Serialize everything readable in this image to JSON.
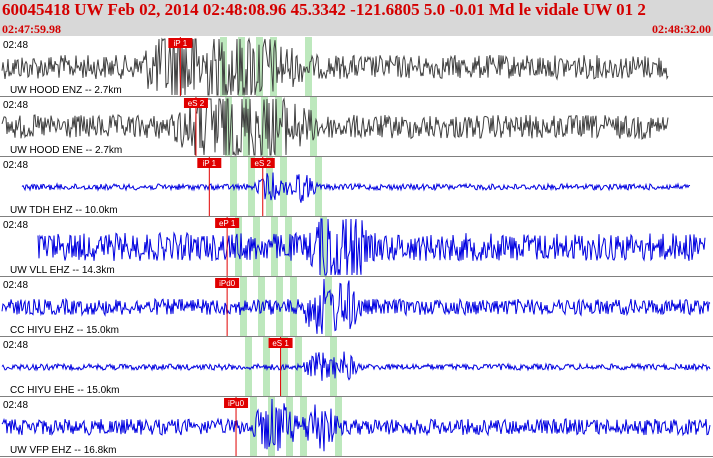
{
  "header": {
    "title": "60045418 UW Feb 02, 2014 02:48:08.96   45.3342 -121.6805  5.0 -0.01 Md le vidale UW 01   2",
    "start_time": "02:47:59.98",
    "end_time": "02:48:32.00"
  },
  "colors": {
    "accel": "#404040",
    "vel": "#0000e0",
    "pick": "#e00000",
    "window": "#bde8bd",
    "header_bg": "#d8d8d8",
    "title": "#d40000"
  },
  "channels": [
    {
      "time": "02:48",
      "station": "UW HOOD ENZ -- 2.7km",
      "trace_type": "accel",
      "picks": [
        {
          "label": "iP 1",
          "t": 8.1
        }
      ]
    },
    {
      "time": "02:48",
      "station": "UW HOOD ENE -- 2.7km",
      "trace_type": "accel",
      "picks": [
        {
          "label": "eS 2",
          "t": 8.8
        }
      ]
    },
    {
      "time": "02:48",
      "station": "UW TDH EHZ -- 10.0km",
      "trace_type": "vel",
      "picks": [
        {
          "label": "iP 1",
          "t": 9.4
        },
        {
          "label": "eS 2",
          "t": 11.8
        }
      ]
    },
    {
      "time": "02:48",
      "station": "UW VLL EHZ -- 14.3km",
      "trace_type": "vel",
      "picks": [
        {
          "label": "eP 1",
          "t": 10.2
        }
      ]
    },
    {
      "time": "02:48",
      "station": "CC HIYU EHZ -- 15.0km",
      "trace_type": "vel",
      "picks": [
        {
          "label": "iPd0",
          "t": 10.2
        }
      ]
    },
    {
      "time": "02:48",
      "station": "CC HIYU EHE -- 15.0km",
      "trace_type": "vel",
      "picks": [
        {
          "label": "eS 1",
          "t": 12.6
        }
      ]
    },
    {
      "time": "02:48",
      "station": "UW VFP EHZ -- 16.8km",
      "trace_type": "vel",
      "picks": [
        {
          "label": "iPu0",
          "t": 10.6
        }
      ]
    }
  ]
}
